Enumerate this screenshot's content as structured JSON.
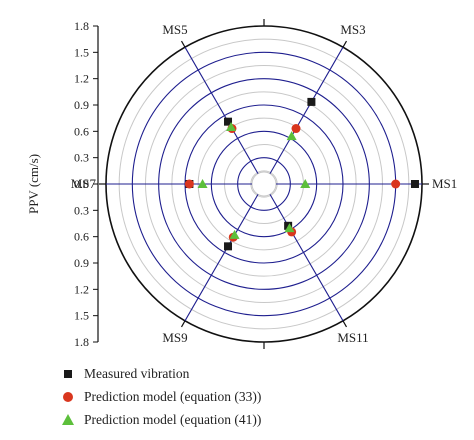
{
  "chart_data": {
    "type": "polar-scatter",
    "ylabel": "PPV (cm/s)",
    "radial_ticks": [
      "1.8",
      "1.5",
      "1.2",
      "0.9",
      "0.6",
      "0.3",
      "0.0",
      "0.3",
      "0.6",
      "0.9",
      "1.2",
      "1.5",
      "1.8"
    ],
    "r_max": 1.8,
    "spokes": [
      {
        "label": "MS1",
        "angle_deg": 0
      },
      {
        "label": "MS3",
        "angle_deg": 60
      },
      {
        "label": "MS5",
        "angle_deg": 120
      },
      {
        "label": "MS7",
        "angle_deg": 180
      },
      {
        "label": "MS9",
        "angle_deg": 240
      },
      {
        "label": "MS11",
        "angle_deg": 300
      }
    ],
    "series": [
      {
        "name": "Measured vibration",
        "marker": "square",
        "color": "#1a1a1a",
        "points": [
          {
            "spoke": "MS1",
            "r": 1.72
          },
          {
            "spoke": "MS3",
            "r": 1.08
          },
          {
            "spoke": "MS5",
            "r": 0.82
          },
          {
            "spoke": "MS7",
            "r": 0.85
          },
          {
            "spoke": "MS9",
            "r": 0.82
          },
          {
            "spoke": "MS11",
            "r": 0.55
          }
        ]
      },
      {
        "name": "Prediction model (equation (33))",
        "marker": "circle",
        "color": "#d9361e",
        "points": [
          {
            "spoke": "MS1",
            "r": 1.5
          },
          {
            "spoke": "MS3",
            "r": 0.73
          },
          {
            "spoke": "MS5",
            "r": 0.73
          },
          {
            "spoke": "MS7",
            "r": 0.85
          },
          {
            "spoke": "MS9",
            "r": 0.7
          },
          {
            "spoke": "MS11",
            "r": 0.63
          }
        ]
      },
      {
        "name": "Prediction model (equation (41))",
        "marker": "triangle",
        "color": "#5cbf3b",
        "points": [
          {
            "spoke": "MS1",
            "r": 0.47
          },
          {
            "spoke": "MS3",
            "r": 0.63
          },
          {
            "spoke": "MS5",
            "r": 0.75
          },
          {
            "spoke": "MS7",
            "r": 0.7
          },
          {
            "spoke": "MS9",
            "r": 0.67
          },
          {
            "spoke": "MS11",
            "r": 0.58
          }
        ]
      }
    ],
    "grid": true,
    "grid_colors": {
      "major": "#1f1f8f",
      "minor": "#c8c8c8"
    },
    "legend_position": "bottom-left"
  }
}
